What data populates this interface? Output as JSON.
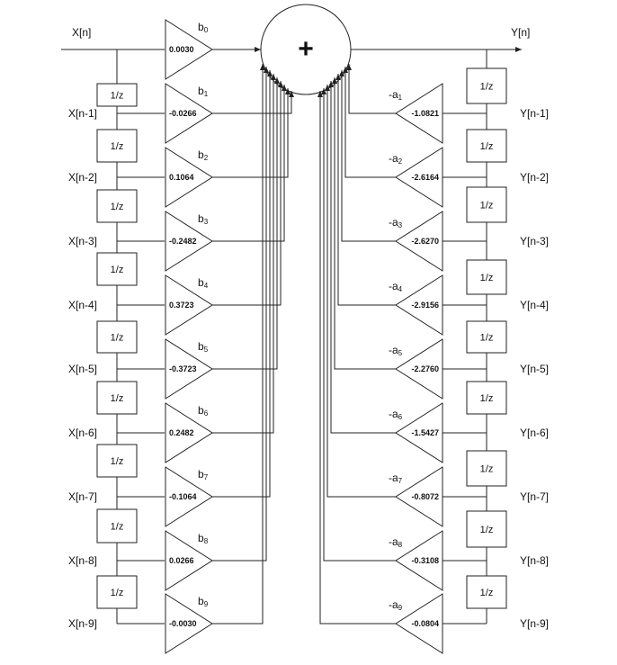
{
  "input_label": "X[n]",
  "output_label": "Y[n]",
  "summer_symbol": "+",
  "delay_label": "1/z",
  "feedforward": [
    {
      "tap": "X[n]",
      "coef_name": "b",
      "coef_index": "0",
      "value": "0.0030"
    },
    {
      "tap": "X[n-1]",
      "coef_name": "b",
      "coef_index": "1",
      "value": "-0.0266"
    },
    {
      "tap": "X[n-2]",
      "coef_name": "b",
      "coef_index": "2",
      "value": "0.1064"
    },
    {
      "tap": "X[n-3]",
      "coef_name": "b",
      "coef_index": "3",
      "value": "-0.2482"
    },
    {
      "tap": "X[n-4]",
      "coef_name": "b",
      "coef_index": "4",
      "value": "0.3723"
    },
    {
      "tap": "X[n-5]",
      "coef_name": "b",
      "coef_index": "5",
      "value": "-0.3723"
    },
    {
      "tap": "X[n-6]",
      "coef_name": "b",
      "coef_index": "6",
      "value": "0.2482"
    },
    {
      "tap": "X[n-7]",
      "coef_name": "b",
      "coef_index": "7",
      "value": "-0.1064"
    },
    {
      "tap": "X[n-8]",
      "coef_name": "b",
      "coef_index": "8",
      "value": "0.0266"
    },
    {
      "tap": "X[n-9]",
      "coef_name": "b",
      "coef_index": "9",
      "value": "-0.0030"
    }
  ],
  "feedback": [
    {
      "tap": "Y[n-1]",
      "coef_name": "-a",
      "coef_index": "1",
      "value": "-1.0821"
    },
    {
      "tap": "Y[n-2]",
      "coef_name": "-a",
      "coef_index": "2",
      "value": "-2.6164"
    },
    {
      "tap": "Y[n-3]",
      "coef_name": "-a",
      "coef_index": "3",
      "value": "-2.6270"
    },
    {
      "tap": "Y[n-4]",
      "coef_name": "-a",
      "coef_index": "4",
      "value": "-2.9156"
    },
    {
      "tap": "Y[n-5]",
      "coef_name": "-a",
      "coef_index": "5",
      "value": "-2.2760"
    },
    {
      "tap": "Y[n-6]",
      "coef_name": "-a",
      "coef_index": "6",
      "value": "-1.5427"
    },
    {
      "tap": "Y[n-7]",
      "coef_name": "-a",
      "coef_index": "7",
      "value": "-0.8072"
    },
    {
      "tap": "Y[n-8]",
      "coef_name": "-a",
      "coef_index": "8",
      "value": "-0.3108"
    },
    {
      "tap": "Y[n-9]",
      "coef_name": "-a",
      "coef_index": "9",
      "value": "-0.0804"
    }
  ]
}
